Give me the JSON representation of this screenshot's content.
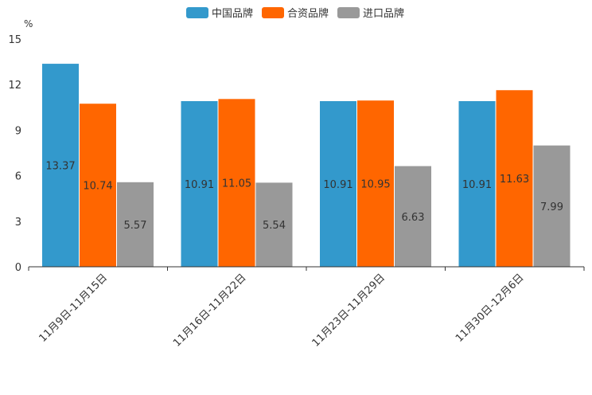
{
  "chart_data": {
    "type": "bar",
    "title": "",
    "unit_label": "%",
    "ylim": [
      0,
      15
    ],
    "yticks": [
      0,
      3,
      6,
      9,
      12,
      15
    ],
    "categories": [
      "11月9日-11月15日",
      "11月16日-11月22日",
      "11月23日-11月29日",
      "11月30日-12月6日"
    ],
    "series": [
      {
        "name": "中国品牌",
        "color": "#3399cc",
        "values": [
          13.37,
          10.91,
          10.91,
          10.91
        ],
        "labels": [
          "13.37",
          "10.91",
          "10.91",
          "10.91"
        ]
      },
      {
        "name": "合资品牌",
        "color": "#ff6600",
        "values": [
          10.74,
          11.05,
          10.95,
          11.63
        ],
        "labels": [
          "10.74",
          "11.05",
          "10.95",
          "11.63"
        ]
      },
      {
        "name": "进口品牌",
        "color": "#999999",
        "values": [
          5.57,
          5.54,
          6.63,
          7.99
        ],
        "labels": [
          "5.57",
          "5.54",
          "6.63",
          "7.99"
        ]
      }
    ],
    "legend_position": "top-center",
    "grid": false
  }
}
